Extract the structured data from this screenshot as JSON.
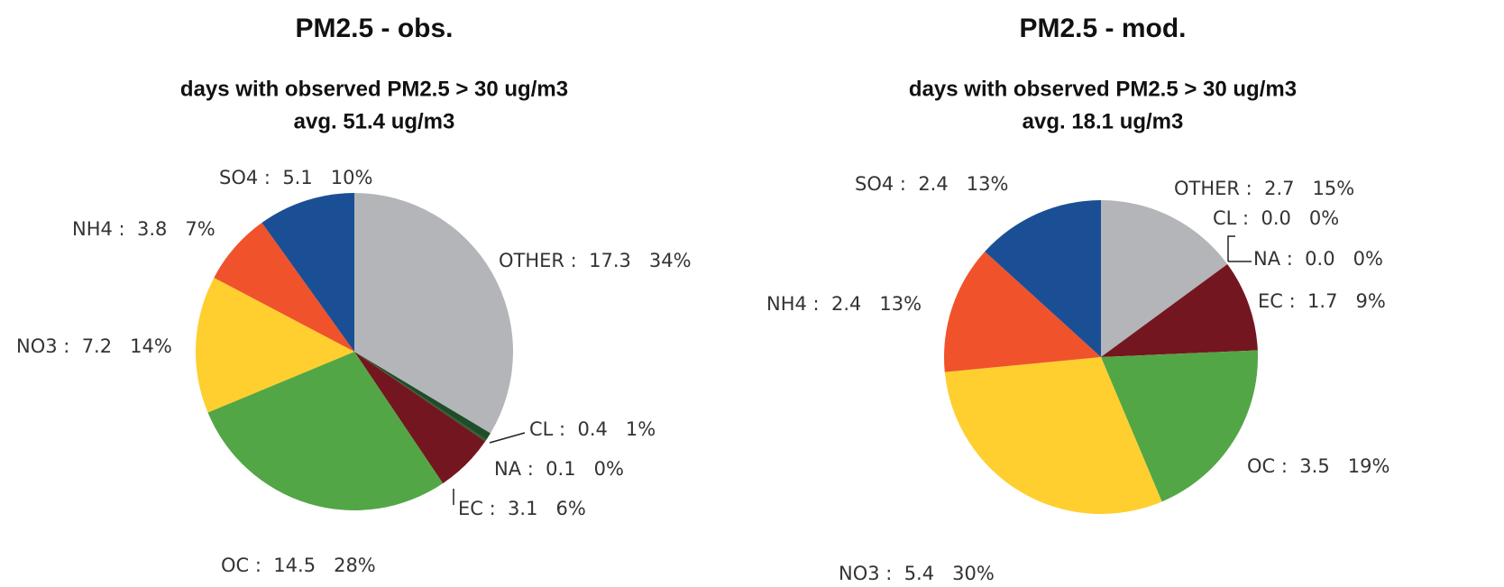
{
  "chart_data": [
    {
      "type": "pie",
      "title": "PM2.5 - obs.",
      "subtitle": [
        "days with observed PM2.5 > 30 ug/m3",
        "avg. 51.4 ug/m3"
      ],
      "values": [
        17.3,
        0.4,
        0.1,
        3.1,
        14.5,
        7.2,
        3.8,
        5.1
      ],
      "value_labels": [
        "OTHER :  17.3   34%",
        "CL :  0.4   1%",
        "NA :  0.1   0%",
        "EC :  3.1   6%",
        "OC :  14.5   28%",
        "NO3 :  7.2   14%",
        "NH4 :  3.8   7%",
        "SO4 :  5.1   10%"
      ],
      "colors": [
        "#b3b5b8",
        "#1f4d2a",
        "#2b5e2e",
        "#741620",
        "#52a646",
        "#fecf2f",
        "#f0532b",
        "#1a4f95"
      ]
    },
    {
      "type": "pie",
      "title": "PM2.5 - mod.",
      "subtitle": [
        "days with observed PM2.5 > 30 ug/m3",
        "avg. 18.1 ug/m3"
      ],
      "values": [
        2.7,
        0.0,
        0.0,
        1.7,
        3.5,
        5.4,
        2.4,
        2.4
      ],
      "value_labels": [
        "OTHER :  2.7   15%",
        "CL :  0.0   0%",
        "NA :  0.0   0%",
        "EC :  1.7   9%",
        "OC :  3.5   19%",
        "NO3 :  5.4   30%",
        "NH4 :  2.4   13%",
        "SO4 :  2.4   13%"
      ],
      "colors": [
        "#b3b5b8",
        "#1f4d2a",
        "#2b5e2e",
        "#741620",
        "#52a646",
        "#fecf2f",
        "#f0532b",
        "#1a4f95"
      ]
    }
  ]
}
